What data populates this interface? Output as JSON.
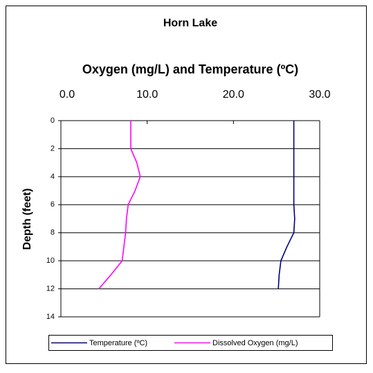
{
  "chart_data": {
    "type": "line",
    "title": "Horn Lake",
    "xlabel": "Oxygen (mg/L) and Temperature (ºC)",
    "ylabel": "Depth (feet)",
    "y": [
      0,
      1,
      2,
      3,
      4,
      5,
      6,
      7,
      8,
      9,
      10,
      11,
      12
    ],
    "series": [
      {
        "name": "Temperature (ºC)",
        "color": "#000080",
        "values": [
          27.0,
          27.0,
          27.0,
          27.0,
          27.0,
          27.0,
          27.0,
          27.1,
          27.0,
          26.2,
          25.5,
          25.3,
          25.2
        ]
      },
      {
        "name": "Dissolved Oxygen (mg/L)",
        "color": "#ff00ff",
        "values": [
          8.1,
          8.1,
          8.1,
          8.8,
          9.2,
          8.6,
          7.8,
          7.6,
          7.5,
          7.3,
          7.1,
          5.8,
          4.4
        ]
      }
    ],
    "xlim": [
      0,
      30
    ],
    "xticks": [
      {
        "value": 0,
        "label": "0.0"
      },
      {
        "value": 10,
        "label": "10.0"
      },
      {
        "value": 20,
        "label": "20.0"
      },
      {
        "value": 30,
        "label": "30.0"
      }
    ],
    "ylim": [
      0,
      14
    ],
    "yticks": [
      0,
      2,
      4,
      6,
      8,
      10,
      12,
      14
    ],
    "y_inverted": true,
    "grid": true,
    "legend": "bottom"
  }
}
